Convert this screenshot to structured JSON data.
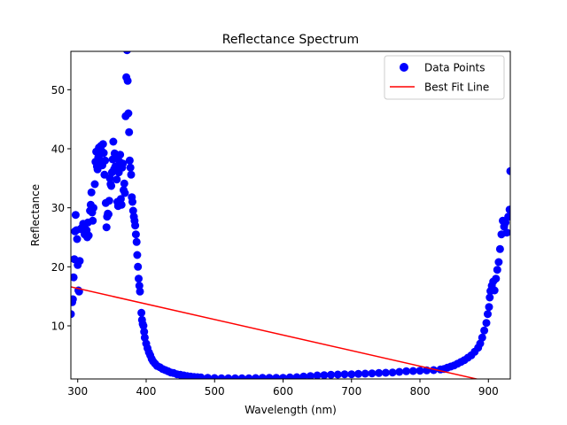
{
  "chart_data": {
    "type": "scatter",
    "title": "Reflectance Spectrum",
    "xlabel": "Wavelength (nm)",
    "ylabel": "Reflectance",
    "xlim": [
      290,
      932
    ],
    "ylim": [
      1,
      56.5
    ],
    "xticks": [
      300,
      400,
      500,
      600,
      700,
      800,
      900
    ],
    "yticks": [
      10,
      20,
      30,
      40,
      50
    ],
    "grid": false,
    "legend_position": "top-right",
    "series": [
      {
        "name": "Data Points",
        "kind": "scatter",
        "color": "#0000ff",
        "points": [
          [
            290,
            12.0
          ],
          [
            292,
            14.0
          ],
          [
            293,
            14.5
          ],
          [
            294,
            18.2
          ],
          [
            295,
            21.3
          ],
          [
            296,
            26.0
          ],
          [
            297,
            28.8
          ],
          [
            298,
            26.2
          ],
          [
            299,
            24.7
          ],
          [
            300,
            20.3
          ],
          [
            301,
            16.0
          ],
          [
            302,
            15.8
          ],
          [
            303,
            21.0
          ],
          [
            304,
            26.4
          ],
          [
            306,
            26.6
          ],
          [
            308,
            27.3
          ],
          [
            310,
            25.5
          ],
          [
            311,
            26.4
          ],
          [
            313,
            26.2
          ],
          [
            314,
            25.0
          ],
          [
            315,
            27.5
          ],
          [
            316,
            25.3
          ],
          [
            318,
            29.5
          ],
          [
            319,
            30.5
          ],
          [
            320,
            32.6
          ],
          [
            321,
            29.2
          ],
          [
            322,
            27.8
          ],
          [
            323,
            30.0
          ],
          [
            325,
            34.0
          ],
          [
            326,
            37.8
          ],
          [
            327,
            39.5
          ],
          [
            328,
            37.0
          ],
          [
            329,
            36.5
          ],
          [
            330,
            38.5
          ],
          [
            331,
            40.2
          ],
          [
            332,
            39.0
          ],
          [
            333,
            38.0
          ],
          [
            334,
            40.5
          ],
          [
            335,
            39.6
          ],
          [
            336,
            37.2
          ],
          [
            337,
            40.8
          ],
          [
            338,
            39.3
          ],
          [
            339,
            35.6
          ],
          [
            340,
            38.0
          ],
          [
            341,
            30.8
          ],
          [
            342,
            26.7
          ],
          [
            343,
            28.5
          ],
          [
            344,
            29.0
          ],
          [
            345,
            28.9
          ],
          [
            346,
            31.2
          ],
          [
            347,
            35.0
          ],
          [
            348,
            34.0
          ],
          [
            349,
            33.7
          ],
          [
            350,
            36.0
          ],
          [
            351,
            38.2
          ],
          [
            352,
            41.2
          ],
          [
            353,
            36.5
          ],
          [
            354,
            39.2
          ],
          [
            355,
            37.0
          ],
          [
            356,
            38.5
          ],
          [
            357,
            34.8
          ],
          [
            358,
            31.0
          ],
          [
            359,
            30.3
          ],
          [
            360,
            36.0
          ],
          [
            361,
            37.8
          ],
          [
            362,
            39.0
          ],
          [
            363,
            31.5
          ],
          [
            364,
            30.5
          ],
          [
            365,
            36.8
          ],
          [
            366,
            37.5
          ],
          [
            367,
            33.0
          ],
          [
            368,
            34.1
          ],
          [
            369,
            32.5
          ],
          [
            370,
            45.5
          ],
          [
            371,
            52.1
          ],
          [
            372,
            56.7
          ],
          [
            373,
            51.5
          ],
          [
            374,
            46.0
          ],
          [
            375,
            42.8
          ],
          [
            376,
            38.0
          ],
          [
            377,
            36.8
          ],
          [
            378,
            35.6
          ],
          [
            379,
            31.8
          ],
          [
            380,
            31.0
          ],
          [
            381,
            29.5
          ],
          [
            382,
            28.5
          ],
          [
            383,
            27.8
          ],
          [
            384,
            27.0
          ],
          [
            385,
            25.5
          ],
          [
            386,
            24.2
          ],
          [
            387,
            22.0
          ],
          [
            388,
            20.0
          ],
          [
            389,
            18.0
          ],
          [
            390,
            16.8
          ],
          [
            391,
            15.8
          ],
          [
            393,
            12.2
          ],
          [
            394,
            11.0
          ],
          [
            395,
            10.3
          ],
          [
            396,
            10.0
          ],
          [
            397,
            9.0
          ],
          [
            398,
            8.0
          ],
          [
            400,
            7.0
          ],
          [
            402,
            6.2
          ],
          [
            404,
            5.5
          ],
          [
            406,
            5.0
          ],
          [
            408,
            4.4
          ],
          [
            410,
            4.0
          ],
          [
            413,
            3.6
          ],
          [
            416,
            3.2
          ],
          [
            420,
            3.0
          ],
          [
            424,
            2.7
          ],
          [
            428,
            2.5
          ],
          [
            432,
            2.3
          ],
          [
            436,
            2.1
          ],
          [
            440,
            2.0
          ],
          [
            445,
            1.8
          ],
          [
            450,
            1.7
          ],
          [
            455,
            1.6
          ],
          [
            460,
            1.5
          ],
          [
            465,
            1.4
          ],
          [
            470,
            1.35
          ],
          [
            475,
            1.3
          ],
          [
            480,
            1.25
          ],
          [
            490,
            1.2
          ],
          [
            500,
            1.15
          ],
          [
            510,
            1.1
          ],
          [
            520,
            1.1
          ],
          [
            530,
            1.1
          ],
          [
            540,
            1.1
          ],
          [
            550,
            1.1
          ],
          [
            560,
            1.15
          ],
          [
            570,
            1.2
          ],
          [
            580,
            1.2
          ],
          [
            590,
            1.2
          ],
          [
            600,
            1.2
          ],
          [
            610,
            1.25
          ],
          [
            620,
            1.3
          ],
          [
            630,
            1.4
          ],
          [
            640,
            1.5
          ],
          [
            650,
            1.6
          ],
          [
            660,
            1.65
          ],
          [
            670,
            1.7
          ],
          [
            680,
            1.75
          ],
          [
            690,
            1.8
          ],
          [
            700,
            1.8
          ],
          [
            710,
            1.85
          ],
          [
            720,
            1.9
          ],
          [
            730,
            1.95
          ],
          [
            740,
            2.0
          ],
          [
            750,
            2.05
          ],
          [
            760,
            2.1
          ],
          [
            770,
            2.2
          ],
          [
            780,
            2.3
          ],
          [
            790,
            2.35
          ],
          [
            800,
            2.4
          ],
          [
            810,
            2.45
          ],
          [
            820,
            2.5
          ],
          [
            830,
            2.6
          ],
          [
            835,
            2.7
          ],
          [
            840,
            2.9
          ],
          [
            845,
            3.1
          ],
          [
            850,
            3.3
          ],
          [
            855,
            3.6
          ],
          [
            860,
            3.9
          ],
          [
            865,
            4.2
          ],
          [
            870,
            4.6
          ],
          [
            875,
            5.0
          ],
          [
            880,
            5.6
          ],
          [
            885,
            6.3
          ],
          [
            888,
            7.0
          ],
          [
            891,
            8.0
          ],
          [
            894,
            9.2
          ],
          [
            897,
            10.5
          ],
          [
            899,
            12.0
          ],
          [
            901,
            13.2
          ],
          [
            902,
            14.8
          ],
          [
            903,
            15.9
          ],
          [
            905,
            16.8
          ],
          [
            907,
            17.5
          ],
          [
            909,
            16.0
          ],
          [
            911,
            18.0
          ],
          [
            913,
            19.5
          ],
          [
            915,
            20.8
          ],
          [
            917,
            23.0
          ],
          [
            919,
            25.5
          ],
          [
            921,
            27.8
          ],
          [
            923,
            26.8
          ],
          [
            925,
            27.5
          ],
          [
            927,
            25.8
          ],
          [
            929,
            28.5
          ],
          [
            931,
            29.7
          ],
          [
            932,
            36.2
          ]
        ]
      },
      {
        "name": "Best Fit Line",
        "kind": "line",
        "color": "#ff0000",
        "x": [
          290,
          932
        ],
        "y": [
          16.6,
          -0.3
        ]
      }
    ]
  }
}
